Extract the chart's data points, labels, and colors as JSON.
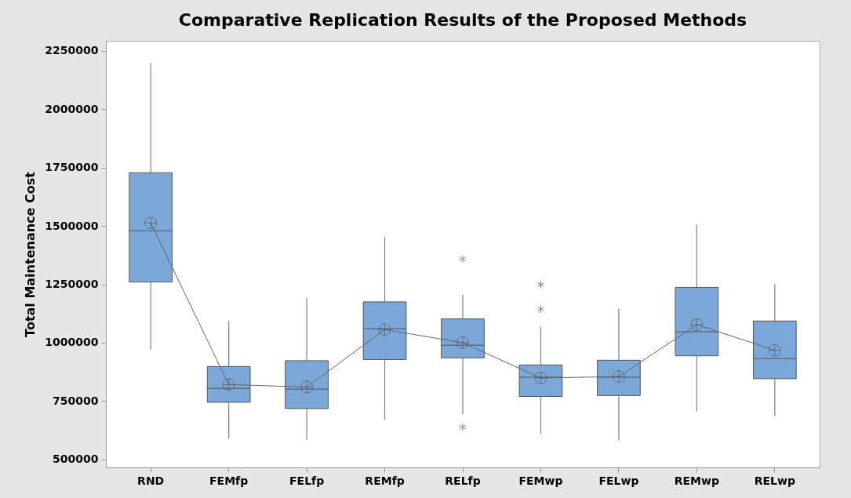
{
  "chart_data": {
    "type": "box",
    "title": "Comparative Replication Results of the Proposed Methods",
    "ylabel": "Total Maintenance Cost",
    "categories": [
      "RND",
      "FEMfp",
      "FELfp",
      "REMfp",
      "RELfp",
      "FEMwp",
      "FELwp",
      "REMwp",
      "RELwp"
    ],
    "color": "#7ba7d9",
    "boxes": [
      {
        "low": 970000,
        "q1": 1260000,
        "median": 1479000,
        "q3": 1728000,
        "high": 2198000,
        "mean": 1513000
      },
      {
        "low": 589000,
        "q1": 745000,
        "median": 804000,
        "q3": 898000,
        "high": 1093000,
        "mean": 821000
      },
      {
        "low": 584000,
        "q1": 718000,
        "median": 801000,
        "q3": 923000,
        "high": 1193000,
        "mean": 810000
      },
      {
        "low": 670000,
        "q1": 928000,
        "median": 1060000,
        "q3": 1175000,
        "high": 1453000,
        "mean": 1056000
      },
      {
        "low": 693000,
        "q1": 935000,
        "median": 989000,
        "q3": 1102000,
        "high": 1206000,
        "mean": 1000000,
        "outliers": [
          1359000,
          639000
        ]
      },
      {
        "low": 609000,
        "q1": 770000,
        "median": 852000,
        "q3": 905000,
        "high": 1067000,
        "mean": 849000,
        "outliers": [
          1249000,
          1144000
        ]
      },
      {
        "low": 583000,
        "q1": 774000,
        "median": 852000,
        "q3": 925000,
        "high": 1146000,
        "mean": 855000
      },
      {
        "low": 706000,
        "q1": 944000,
        "median": 1047000,
        "q3": 1237000,
        "high": 1505000,
        "mean": 1077000
      },
      {
        "low": 686000,
        "q1": 846000,
        "median": 932000,
        "q3": 1093000,
        "high": 1251000,
        "mean": 968000
      }
    ],
    "series": [
      {
        "type": "line",
        "color": "#666666",
        "values": [
          1513000,
          821000,
          810000,
          1056000,
          1000000,
          849000,
          855000,
          1077000,
          968000
        ]
      }
    ],
    "ylim": [
      466000,
      2293000
    ],
    "yticks": [
      500000,
      750000,
      1000000,
      1250000,
      1500000,
      1750000,
      2000000,
      2250000
    ]
  }
}
